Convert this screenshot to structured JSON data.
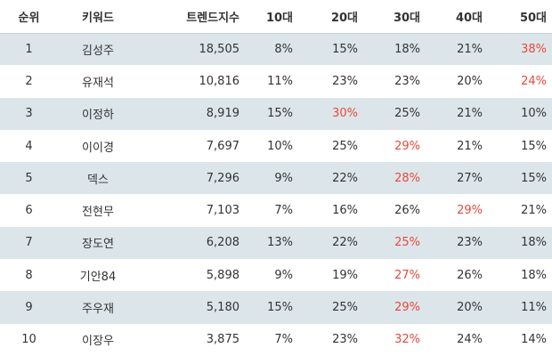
{
  "table": {
    "header": [
      "순위",
      "키워드",
      "트렌드지수",
      "10대",
      "20대",
      "30대",
      "40대",
      "50대"
    ],
    "rows": [
      [
        "1",
        "김성주",
        "18,505",
        "8%",
        "15%",
        "18%",
        "21%",
        "38%"
      ],
      [
        "2",
        "유재석",
        "10,816",
        "11%",
        "23%",
        "23%",
        "20%",
        "24%"
      ],
      [
        "3",
        "이정하",
        "8,919",
        "15%",
        "30%",
        "25%",
        "21%",
        "10%"
      ],
      [
        "4",
        "이이경",
        "7,697",
        "10%",
        "25%",
        "29%",
        "21%",
        "15%"
      ],
      [
        "5",
        "덱스",
        "7,296",
        "9%",
        "22%",
        "28%",
        "27%",
        "15%"
      ],
      [
        "6",
        "전현무",
        "7,103",
        "7%",
        "16%",
        "26%",
        "29%",
        "21%"
      ],
      [
        "7",
        "장도연",
        "6,208",
        "13%",
        "22%",
        "25%",
        "23%",
        "18%"
      ],
      [
        "8",
        "기안84",
        "5,898",
        "9%",
        "19%",
        "27%",
        "26%",
        "18%"
      ],
      [
        "9",
        "주우재",
        "5,180",
        "15%",
        "25%",
        "29%",
        "20%",
        "11%"
      ],
      [
        "10",
        "이장우",
        "3,875",
        "7%",
        "23%",
        "32%",
        "24%",
        "14%"
      ]
    ],
    "stripe_color": "#dce6ea",
    "highlight_color": "#e8483b"
  }
}
